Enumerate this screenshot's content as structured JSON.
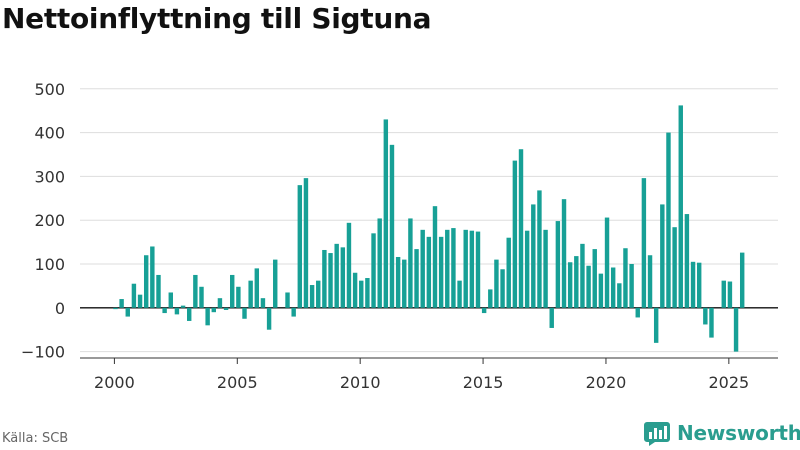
{
  "title": "Nettoinflyttning till Sigtuna",
  "source": "Källa: SCB",
  "brand": {
    "name": "Newsworthy",
    "icon": "bar-chart-logo-icon"
  },
  "colors": {
    "bar": "#17a096",
    "grid": "#dddddd",
    "axis": "#333333",
    "text": "#333333",
    "brand": "#2a9d8f"
  },
  "chart_data": {
    "type": "bar",
    "title": "Nettoinflyttning till Sigtuna",
    "xlabel": "",
    "ylabel": "",
    "xlim": [
      1998.6,
      2027.0
    ],
    "ylim": [
      -110,
      520
    ],
    "y_ticks": [
      -100,
      0,
      100,
      200,
      300,
      400,
      500
    ],
    "y_tick_labels": [
      "−100",
      "0",
      "100",
      "200",
      "300",
      "400",
      "500"
    ],
    "x_ticks": [
      2000,
      2005,
      2010,
      2015,
      2020,
      2025
    ],
    "x_tick_labels": [
      "2000",
      "2005",
      "2010",
      "2015",
      "2020",
      "2025"
    ],
    "grid": "horizontal",
    "legend": "none",
    "period": "quarterly",
    "start": "2000-Q1",
    "values": [
      -3,
      20,
      -20,
      55,
      30,
      120,
      140,
      75,
      -12,
      35,
      -15,
      5,
      -30,
      75,
      48,
      -40,
      -10,
      22,
      -5,
      75,
      48,
      -25,
      62,
      90,
      22,
      -50,
      110,
      0,
      35,
      -20,
      280,
      296,
      52,
      62,
      132,
      125,
      146,
      138,
      194,
      80,
      62,
      68,
      170,
      204,
      430,
      372,
      116,
      110,
      204,
      134,
      178,
      162,
      232,
      162,
      178,
      182,
      62,
      178,
      176,
      174,
      -12,
      42,
      110,
      88,
      160,
      336,
      362,
      176,
      236,
      268,
      178,
      -46,
      198,
      248,
      104,
      118,
      146,
      96,
      134,
      78,
      206,
      92,
      56,
      136,
      100,
      -22,
      296,
      120,
      -80,
      236,
      400,
      184,
      462,
      214,
      105,
      103,
      -38,
      -68,
      0,
      62,
      60,
      -100,
      126
    ]
  }
}
